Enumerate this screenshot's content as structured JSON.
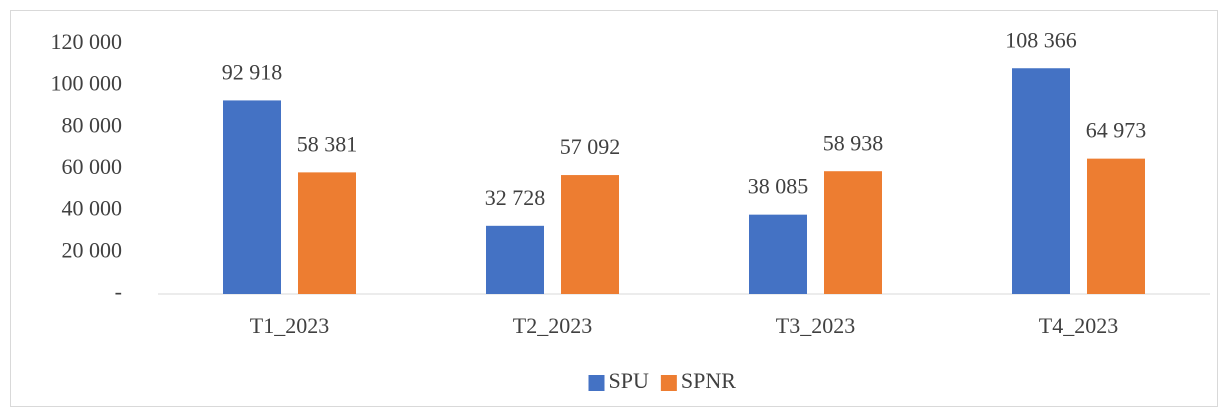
{
  "chart_data": {
    "type": "bar",
    "categories": [
      "T1_2023",
      "T2_2023",
      "T3_2023",
      "T4_2023"
    ],
    "series": [
      {
        "name": "SPU",
        "color": "#4472c4",
        "values": [
          92918,
          32728,
          38085,
          108366
        ],
        "value_labels": [
          "92 918",
          "32 728",
          "38 085",
          "108 366"
        ]
      },
      {
        "name": "SPNR",
        "color": "#ed7d31",
        "values": [
          58381,
          57092,
          58938,
          64973
        ],
        "value_labels": [
          "58 381",
          "57 092",
          "58 938",
          "64 973"
        ]
      }
    ],
    "ylim": [
      0,
      120000
    ],
    "yticks": [
      {
        "value": 0,
        "label": "-"
      },
      {
        "value": 20000,
        "label": "20 000"
      },
      {
        "value": 40000,
        "label": "40 000"
      },
      {
        "value": 60000,
        "label": "60 000"
      },
      {
        "value": 80000,
        "label": "80 000"
      },
      {
        "value": 100000,
        "label": "100 000"
      },
      {
        "value": 120000,
        "label": "120 000"
      }
    ],
    "grid": false,
    "legend": "bottom"
  }
}
